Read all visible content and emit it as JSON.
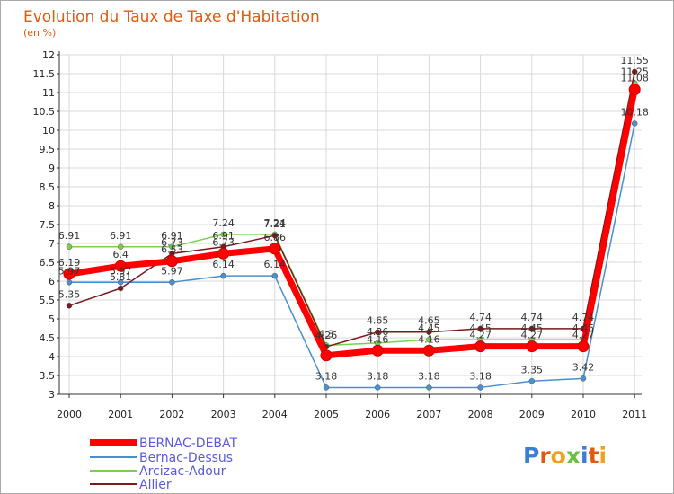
{
  "colors": {
    "title": "#e05a10",
    "border": "#aaaaaa",
    "grid": "#d8d8d8",
    "axis": "#333333",
    "legend_text": "#5a5ae0"
  },
  "logo": {
    "letters": [
      "P",
      "r",
      "o",
      "x",
      "i",
      "t",
      "i"
    ],
    "colors": [
      "#3a7fd0",
      "#e05a10",
      "#f2a020",
      "#6cc040",
      "#3a7fd0",
      "#e05a10",
      "#f2a020"
    ]
  },
  "chart_data": {
    "type": "line",
    "title": "Evolution du Taux de Taxe d'Habitation",
    "subtitle": "(en %)",
    "xlabel": "",
    "ylabel": "",
    "x": [
      "2000",
      "2001",
      "2002",
      "2003",
      "2004",
      "2005",
      "2006",
      "2007",
      "2008",
      "2009",
      "2010",
      "2011"
    ],
    "ylim": [
      3,
      12
    ],
    "yticks": [
      "3",
      "3.5",
      "4",
      "4.5",
      "5",
      "5.5",
      "6",
      "6.5",
      "7",
      "7.5",
      "8",
      "8.5",
      "9",
      "9.5",
      "10",
      "10.5",
      "11",
      "11.5",
      "12"
    ],
    "grid": true,
    "legend_position": "bottom-left",
    "series": [
      {
        "name": "BERNAC-DEBAT",
        "color": "#ff0000",
        "width": 7,
        "marker": 6,
        "values": [
          6.19,
          6.4,
          6.53,
          6.73,
          6.86,
          4.03,
          4.16,
          4.16,
          4.27,
          4.27,
          4.27,
          11.08
        ],
        "labels": [
          "6.19",
          "6.4",
          "6.53",
          "6.73",
          "6.86",
          "",
          "4.16",
          "4.16",
          "4.27",
          "4.27",
          "4.27",
          "11.08"
        ]
      },
      {
        "name": "Bernac-Dessus",
        "color": "#4a8fd0",
        "width": 1.5,
        "marker": 3,
        "values": [
          5.97,
          5.97,
          5.97,
          6.14,
          6.14,
          3.18,
          3.18,
          3.18,
          3.18,
          3.35,
          3.42,
          10.18
        ],
        "labels": [
          "5.97",
          "5.97",
          "5.97",
          "6.14",
          "6.14",
          "3.18",
          "3.18",
          "3.18",
          "3.18",
          "3.35",
          "3.42",
          "10.18"
        ]
      },
      {
        "name": "Arcizac-Adour",
        "color": "#78d050",
        "width": 1.5,
        "marker": 3,
        "values": [
          6.91,
          6.91,
          6.91,
          7.24,
          7.24,
          4.3,
          4.36,
          4.45,
          4.45,
          4.45,
          4.45,
          11.25
        ],
        "labels": [
          "6.91",
          "6.91",
          "6.91",
          "7.24",
          "7.24",
          "4.3",
          "4.36",
          "4.45",
          "4.45",
          "4.45",
          "4.45",
          "11.25"
        ]
      },
      {
        "name": "Allier",
        "color": "#7a1a1a",
        "width": 1.5,
        "marker": 3,
        "values": [
          5.35,
          5.81,
          6.73,
          6.91,
          7.21,
          4.26,
          4.65,
          4.65,
          4.74,
          4.74,
          4.74,
          11.55
        ],
        "labels": [
          "5.35",
          "5.81",
          "6.73",
          "6.91",
          "7.21",
          "4.26",
          "4.65",
          "4.65",
          "4.74",
          "4.74",
          "4.74",
          "11.55"
        ]
      }
    ]
  }
}
